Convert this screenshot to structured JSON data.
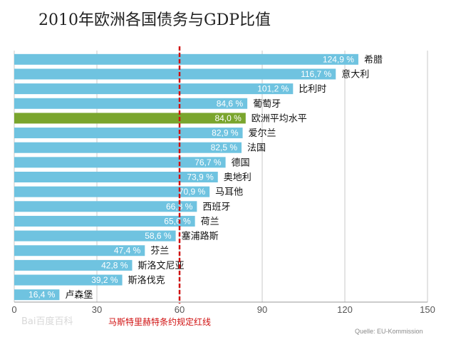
{
  "title": "2010年欧洲各国债务与GDP比值",
  "source": "Quelle: EU-Kommission",
  "watermark": "Bai百度百科",
  "colors": {
    "bar": "#6fc3e0",
    "bar_highlight": "#7aa52d",
    "reference_line": "#d01010",
    "grid": "#c8c8c8"
  },
  "chart_data": {
    "type": "bar",
    "orientation": "horizontal",
    "title": "2010年欧洲各国债务与GDP比值",
    "xlabel": "",
    "ylabel": "",
    "xlim": [
      0,
      150
    ],
    "xticks": [
      0,
      30,
      60,
      90,
      120,
      150
    ],
    "categories": [
      "希腊",
      "意大利",
      "比利时",
      "葡萄牙",
      "欧洲平均水平",
      "爱尔兰",
      "法国",
      "德国",
      "奥地利",
      "马耳他",
      "西班牙",
      "荷兰",
      "塞浦路斯",
      "芬兰",
      "斯洛文尼亚",
      "斯洛伐克",
      "卢森堡"
    ],
    "values": [
      124.9,
      116.7,
      101.2,
      84.6,
      84.0,
      82.9,
      82.5,
      76.7,
      73.9,
      70.9,
      66.3,
      65.6,
      58.6,
      47.4,
      42.8,
      39.2,
      16.4
    ],
    "value_labels": [
      "124,9 %",
      "116,7 %",
      "101,2 %",
      "84,6 %",
      "84,0 %",
      "82,9 %",
      "82,5 %",
      "76,7 %",
      "73,9 %",
      "70,9 %",
      "66,3 %",
      "65,6 %",
      "58,6 %",
      "47,4 %",
      "42,8 %",
      "39,2 %",
      "16,4 %"
    ],
    "highlight_category": "欧洲平均水平",
    "reference_line": {
      "value": 60,
      "label": "马斯特里赫特条约规定红线"
    },
    "grid": true
  }
}
